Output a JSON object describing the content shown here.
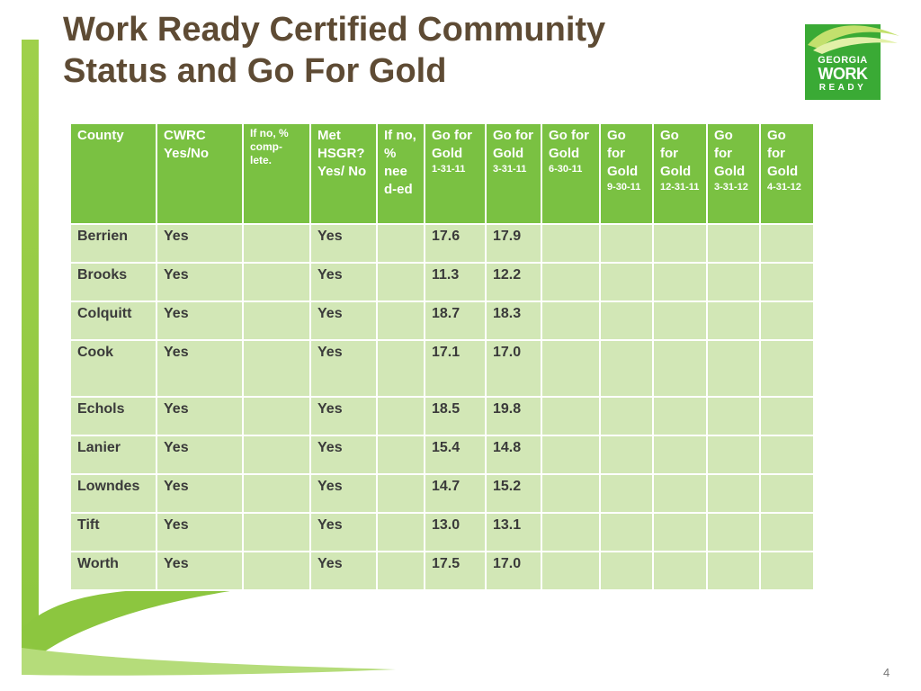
{
  "title_line1": "Work Ready Certified Community",
  "title_line2": "Status and Go For Gold",
  "logo": {
    "line1": "GEORGIA",
    "line2": "WORK",
    "line3": "READY"
  },
  "colors": {
    "header_green": "#7ac142",
    "row_green": "#d2e7b6",
    "title_brown": "#5e4b34",
    "logo_green": "#3aaa35"
  },
  "table": {
    "headers": [
      {
        "main": "County"
      },
      {
        "main": "CWRC Yes/No"
      },
      {
        "main": "If no, % comp-lete."
      },
      {
        "main": "Met HSGR? Yes/ No"
      },
      {
        "main": "If no, % nee d-ed"
      },
      {
        "main": "Go for Gold",
        "sub": "1-31-11"
      },
      {
        "main": "Go for Gold",
        "sub": "3-31-11"
      },
      {
        "main": "Go for Gold",
        "sub": "6-30-11"
      },
      {
        "main": "Go for Gold",
        "sub": "9-30-11"
      },
      {
        "main": "Go for Gold",
        "sub": "12-31-11"
      },
      {
        "main": "Go for Gold",
        "sub": "3-31-12"
      },
      {
        "main": "Go for Gold",
        "sub": "4-31-12"
      }
    ],
    "rows": [
      {
        "county": "Berrien",
        "cwrc": "Yes",
        "pct_complete": "",
        "met_hsgr": "Yes",
        "pct_needed": "",
        "gfg": [
          "17.6",
          "17.9",
          "",
          "",
          "",
          "",
          ""
        ]
      },
      {
        "county": "Brooks",
        "cwrc": "Yes",
        "pct_complete": "",
        "met_hsgr": "Yes",
        "pct_needed": "",
        "gfg": [
          "11.3",
          "12.2",
          "",
          "",
          "",
          "",
          ""
        ]
      },
      {
        "county": "Colquitt",
        "cwrc": "Yes",
        "pct_complete": "",
        "met_hsgr": "Yes",
        "pct_needed": "",
        "gfg": [
          "18.7",
          "18.3",
          "",
          "",
          "",
          "",
          ""
        ]
      },
      {
        "county": "Cook",
        "cwrc": "Yes",
        "pct_complete": "",
        "met_hsgr": "Yes",
        "pct_needed": "",
        "gfg": [
          "17.1",
          "17.0",
          "",
          "",
          "",
          "",
          ""
        ]
      },
      {
        "county": "Echols",
        "cwrc": "Yes",
        "pct_complete": "",
        "met_hsgr": "Yes",
        "pct_needed": "",
        "gfg": [
          "18.5",
          "19.8",
          "",
          "",
          "",
          "",
          ""
        ]
      },
      {
        "county": "Lanier",
        "cwrc": "Yes",
        "pct_complete": "",
        "met_hsgr": "Yes",
        "pct_needed": "",
        "gfg": [
          "15.4",
          "14.8",
          "",
          "",
          "",
          "",
          ""
        ]
      },
      {
        "county": "Lowndes",
        "cwrc": "Yes",
        "pct_complete": "",
        "met_hsgr": "Yes",
        "pct_needed": "",
        "gfg": [
          "14.7",
          "15.2",
          "",
          "",
          "",
          "",
          ""
        ]
      },
      {
        "county": "Tift",
        "cwrc": "Yes",
        "pct_complete": "",
        "met_hsgr": "Yes",
        "pct_needed": "",
        "gfg": [
          "13.0",
          "13.1",
          "",
          "",
          "",
          "",
          ""
        ]
      },
      {
        "county": "Worth",
        "cwrc": "Yes",
        "pct_complete": "",
        "met_hsgr": "Yes",
        "pct_needed": "",
        "gfg": [
          "17.5",
          "17.0",
          "",
          "",
          "",
          "",
          ""
        ]
      }
    ]
  },
  "page_number": "4"
}
